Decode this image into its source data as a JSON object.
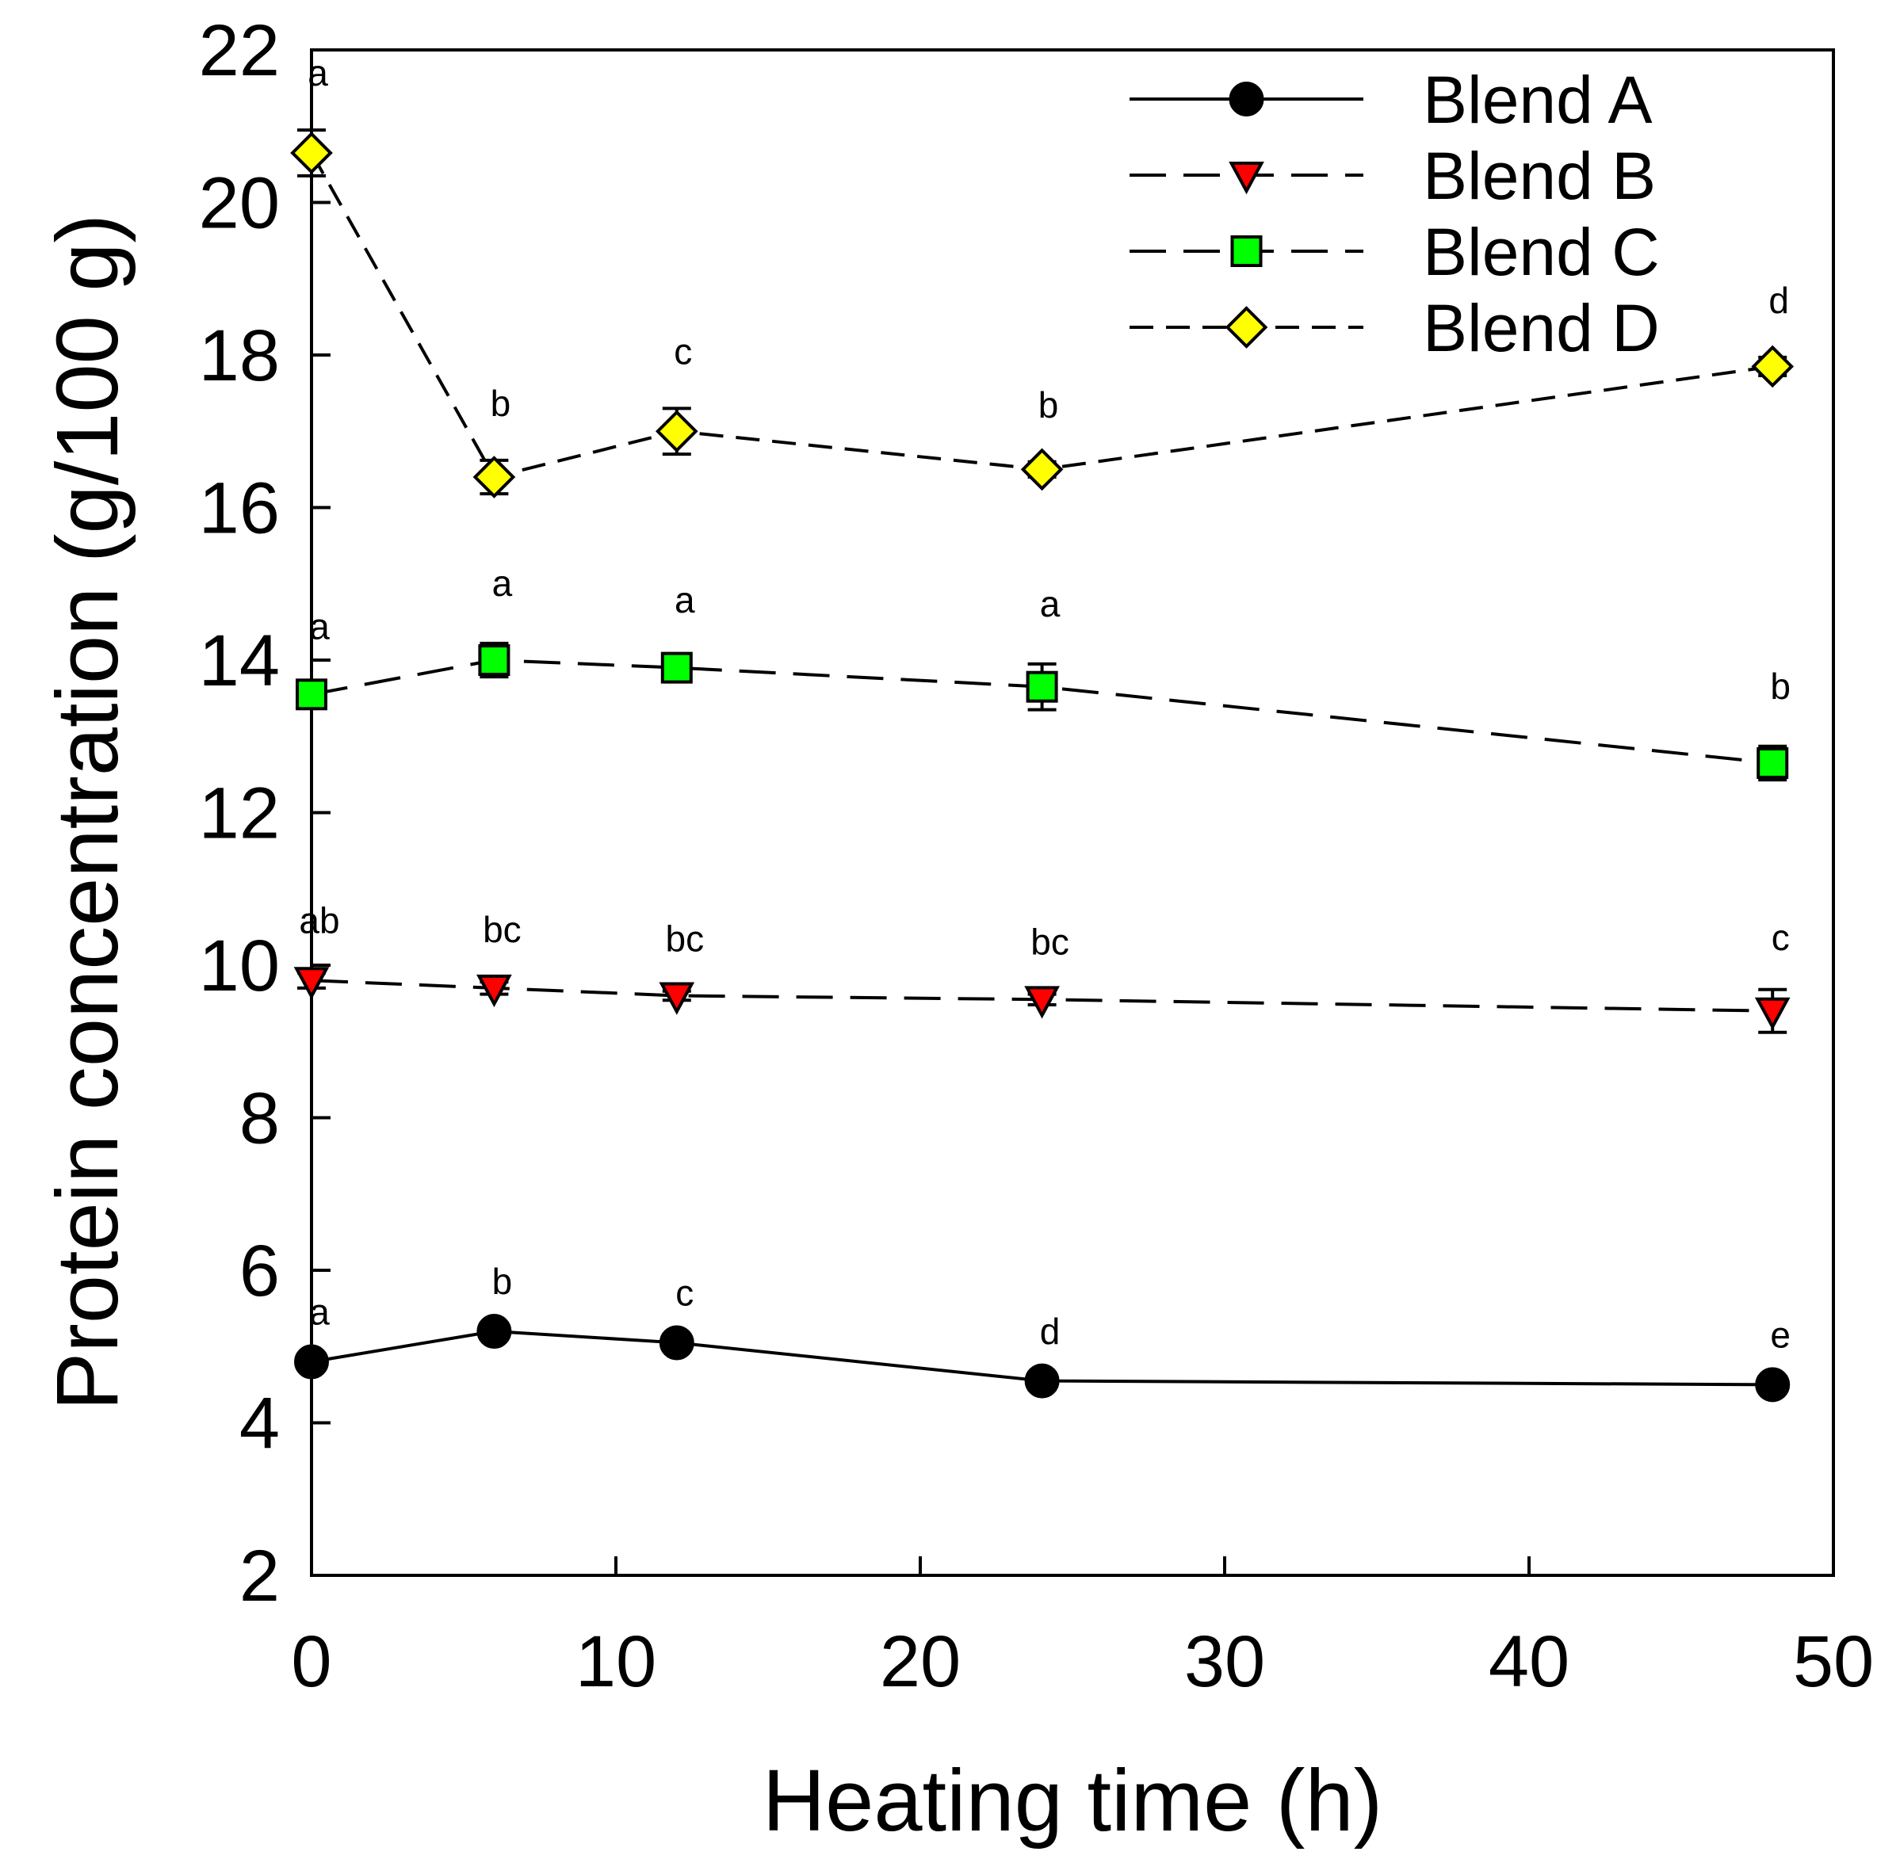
{
  "chart_data": {
    "type": "line",
    "xlabel": "Heating time (h)",
    "ylabel": "Protein concentration (g/100 g)",
    "xlim": [
      0,
      50
    ],
    "ylim": [
      2,
      22
    ],
    "xticks": [
      0,
      10,
      20,
      30,
      40,
      50
    ],
    "yticks": [
      2,
      4,
      6,
      8,
      10,
      12,
      14,
      16,
      18,
      20,
      22
    ],
    "x": [
      0,
      6,
      12,
      24,
      48
    ],
    "grid": false,
    "legend_position": "top-right",
    "series": [
      {
        "name": "Blend A",
        "marker": "circle",
        "color": "#000000",
        "dash": "solid",
        "values": [
          4.8,
          5.2,
          5.05,
          4.55,
          4.5
        ],
        "errors": [
          0.05,
          0.05,
          0.05,
          0.05,
          0.05
        ],
        "letters": [
          "a",
          "b",
          "c",
          "d",
          "e"
        ]
      },
      {
        "name": "Blend B",
        "marker": "triangle-down",
        "color": "#ff0000",
        "dash": "long-dash",
        "values": [
          9.8,
          9.7,
          9.6,
          9.55,
          9.4
        ],
        "errors": [
          0.1,
          0.08,
          0.06,
          0.07,
          0.28
        ],
        "letters": [
          "ab",
          "bc",
          "bc",
          "bc",
          "c"
        ]
      },
      {
        "name": "Blend C",
        "marker": "square",
        "color": "#00ff00",
        "dash": "long-dash",
        "values": [
          13.55,
          14.0,
          13.9,
          13.65,
          12.65
        ],
        "errors": [
          0.1,
          0.22,
          0.1,
          0.3,
          0.22
        ],
        "letters": [
          "a",
          "a",
          "a",
          "a",
          "b"
        ]
      },
      {
        "name": "Blend D",
        "marker": "diamond",
        "color": "#ffff00",
        "dash": "medium-dash",
        "values": [
          20.65,
          16.4,
          17.0,
          16.5,
          17.85
        ],
        "errors": [
          0.3,
          0.22,
          0.3,
          0.1,
          0.12
        ],
        "letters": [
          "a",
          "b",
          "c",
          "b",
          "d"
        ]
      }
    ]
  }
}
